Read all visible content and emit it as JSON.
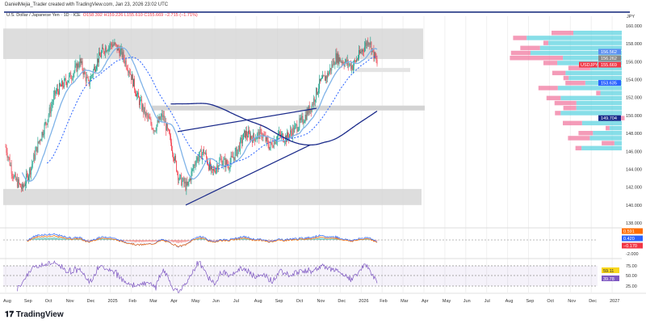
{
  "header": {
    "author_line": "DanielMejia_Trader created with TradingView.com, Jan 23, 2026 23:02 UTC"
  },
  "symbol": {
    "name": "U.S. Dollar / Japanese Yen · 1D · ICE",
    "open": "O158.392",
    "high": "H159.226",
    "low": "L155.610",
    "close": "C155.669",
    "change": "−2.715 (−1.71%)"
  },
  "currency": "JPY",
  "price_labels": {
    "ask": "156.562",
    "bid": "156.262",
    "ticker": "USDJPY",
    "last": "155.669",
    "ma1": "153.635",
    "ma2": "149.704"
  },
  "macd_labels": [
    "0.591",
    "0.420",
    "−0.170",
    "-2.000"
  ],
  "rsi_labels": {
    "top": "75.00",
    "mid": "50.00",
    "bottom": "25.00",
    "v1": "59.11",
    "v2": "39.78"
  },
  "brand": "TradingView",
  "colors": {
    "up": "#089981",
    "down": "#f23645",
    "zone": "#d4d4d4",
    "ma_dark": "#1a2a8a",
    "ma_light": "#7fb3e8",
    "vp_up": "#5fd3e0",
    "vp_down": "#f07aa0"
  },
  "chart_data": {
    "type": "candlestick",
    "title": "USDJPY 1D",
    "ylim": [
      138,
      160.5
    ],
    "y_ticks": [
      160,
      158,
      156,
      154,
      152,
      150,
      148,
      146,
      144,
      142,
      140,
      138
    ],
    "x_ticks": [
      "Aug",
      "Sep",
      "Oct",
      "Nov",
      "Dec",
      "2025",
      "Feb",
      "Mar",
      "Apr",
      "May",
      "Jun",
      "Jul",
      "Aug",
      "Sep",
      "Oct",
      "Nov",
      "Dec",
      "2026",
      "Feb",
      "Mar",
      "Apr",
      "May",
      "Jun",
      "Jul",
      "Aug",
      "Sep",
      "Oct",
      "Nov",
      "Dec",
      "2027"
    ],
    "closes_semimonthly": [
      146.5,
      143,
      141.8,
      144,
      147,
      149.5,
      152.5,
      153.5,
      154.5,
      156,
      153.5,
      156,
      157.5,
      158,
      157,
      155,
      152,
      150,
      148.5,
      150,
      147,
      143,
      142,
      145,
      146,
      143.5,
      145,
      144.5,
      146,
      148,
      147.5,
      148,
      146.5,
      147.8,
      147.5,
      148.5,
      149.5,
      151,
      153.5,
      154.5,
      156.5,
      156,
      155.5,
      157,
      158.5,
      155.7
    ],
    "zones": [
      [
        156.3,
        159.7
      ],
      [
        141.8,
        140
      ],
      [
        150.5,
        151.1
      ],
      [
        154.8,
        155.3
      ]
    ]
  }
}
